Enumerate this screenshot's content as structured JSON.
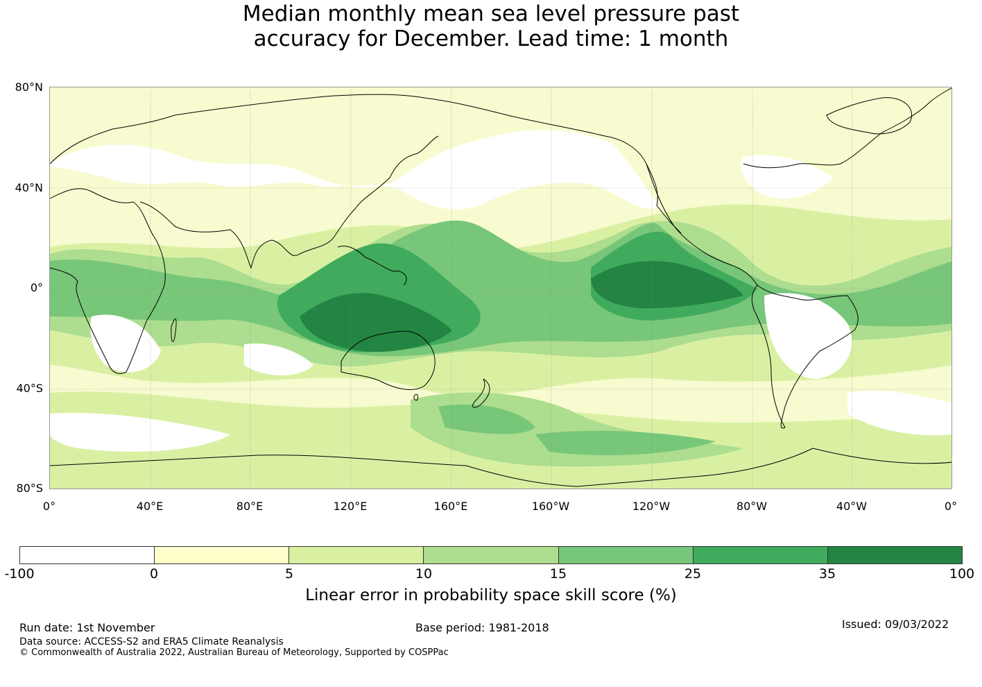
{
  "title": {
    "line1": "Median monthly mean sea level pressure past",
    "line2": "accuracy for December. Lead time: 1 month"
  },
  "map": {
    "lat_labels": [
      "80°N",
      "40°N",
      "0°",
      "40°S",
      "80°S"
    ],
    "lon_labels": [
      "0°",
      "40°E",
      "80°E",
      "120°E",
      "160°E",
      "160°W",
      "120°W",
      "80°W",
      "40°W",
      "0°"
    ],
    "colors": {
      "class_-100_0": "#ffffff",
      "class_0_5": "#ffffcc",
      "class_5_10": "#d9f0a3",
      "class_10_15": "#addd8e",
      "class_15_25": "#78c679",
      "class_25_35": "#41ab5d",
      "class_35_100": "#238443",
      "coastline": "#000000"
    }
  },
  "colorbar": {
    "ticks": [
      "-100",
      "0",
      "5",
      "10",
      "15",
      "25",
      "35",
      "100"
    ],
    "colors": [
      "#ffffff",
      "#ffffcc",
      "#d9f0a3",
      "#addd8e",
      "#78c679",
      "#41ab5d",
      "#238443"
    ],
    "label": "Linear error in probability space skill score (%)"
  },
  "footer": {
    "run_date": "Run date: 1st November",
    "base_period": "Base period: 1981-2018",
    "issued": "Issued: 09/03/2022",
    "data_source": "Data source: ACCESS-S2 and ERA5 Climate Reanalysis",
    "copyright": "© Commonwealth of Australia 2022, Australian Bureau of Meteorology, Supported by COSPPac"
  }
}
